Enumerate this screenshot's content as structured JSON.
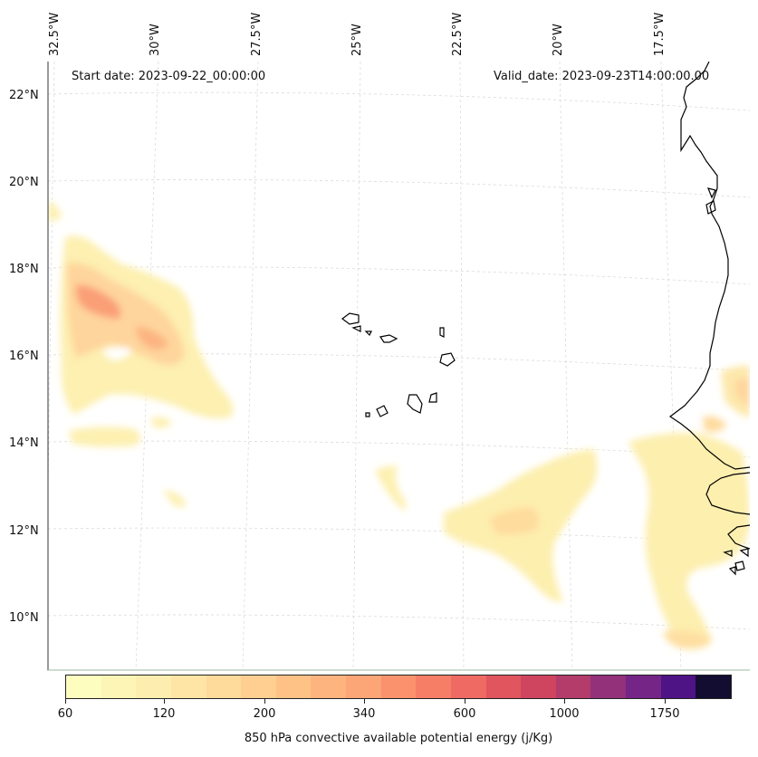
{
  "header": {
    "start_date": "Start date: 2023-09-22_00:00:00",
    "valid_date": "Valid_date: 2023-09-23T14:00:00.00"
  },
  "axes": {
    "longitude_labels": [
      "32.5°W",
      "30°W",
      "27.5°W",
      "25°W",
      "22.5°W",
      "20°W",
      "17.5°W"
    ],
    "latitude_labels": [
      "22°N",
      "20°N",
      "18°N",
      "16°N",
      "14°N",
      "12°N",
      "10°N"
    ]
  },
  "colorbar": {
    "title": "850 hPa convective available potential energy (j/Kg)",
    "tick_labels": [
      "60",
      "120",
      "200",
      "340",
      "600",
      "1000",
      "1750"
    ],
    "colors": [
      "#fcfdbf",
      "#fcf5b6",
      "#fdedae",
      "#fee5a6",
      "#feda9b",
      "#fecf91",
      "#fec287",
      "#feb47e",
      "#fca576",
      "#fa926e",
      "#f67e67",
      "#ee6a62",
      "#e1555f",
      "#cf4560",
      "#b33c6a",
      "#93317a",
      "#742585",
      "#4e1485",
      "#120d31"
    ]
  },
  "map": {
    "background": "#ffffff",
    "gridline_color": "#d9d9d9",
    "coastline_color": "#000000"
  }
}
